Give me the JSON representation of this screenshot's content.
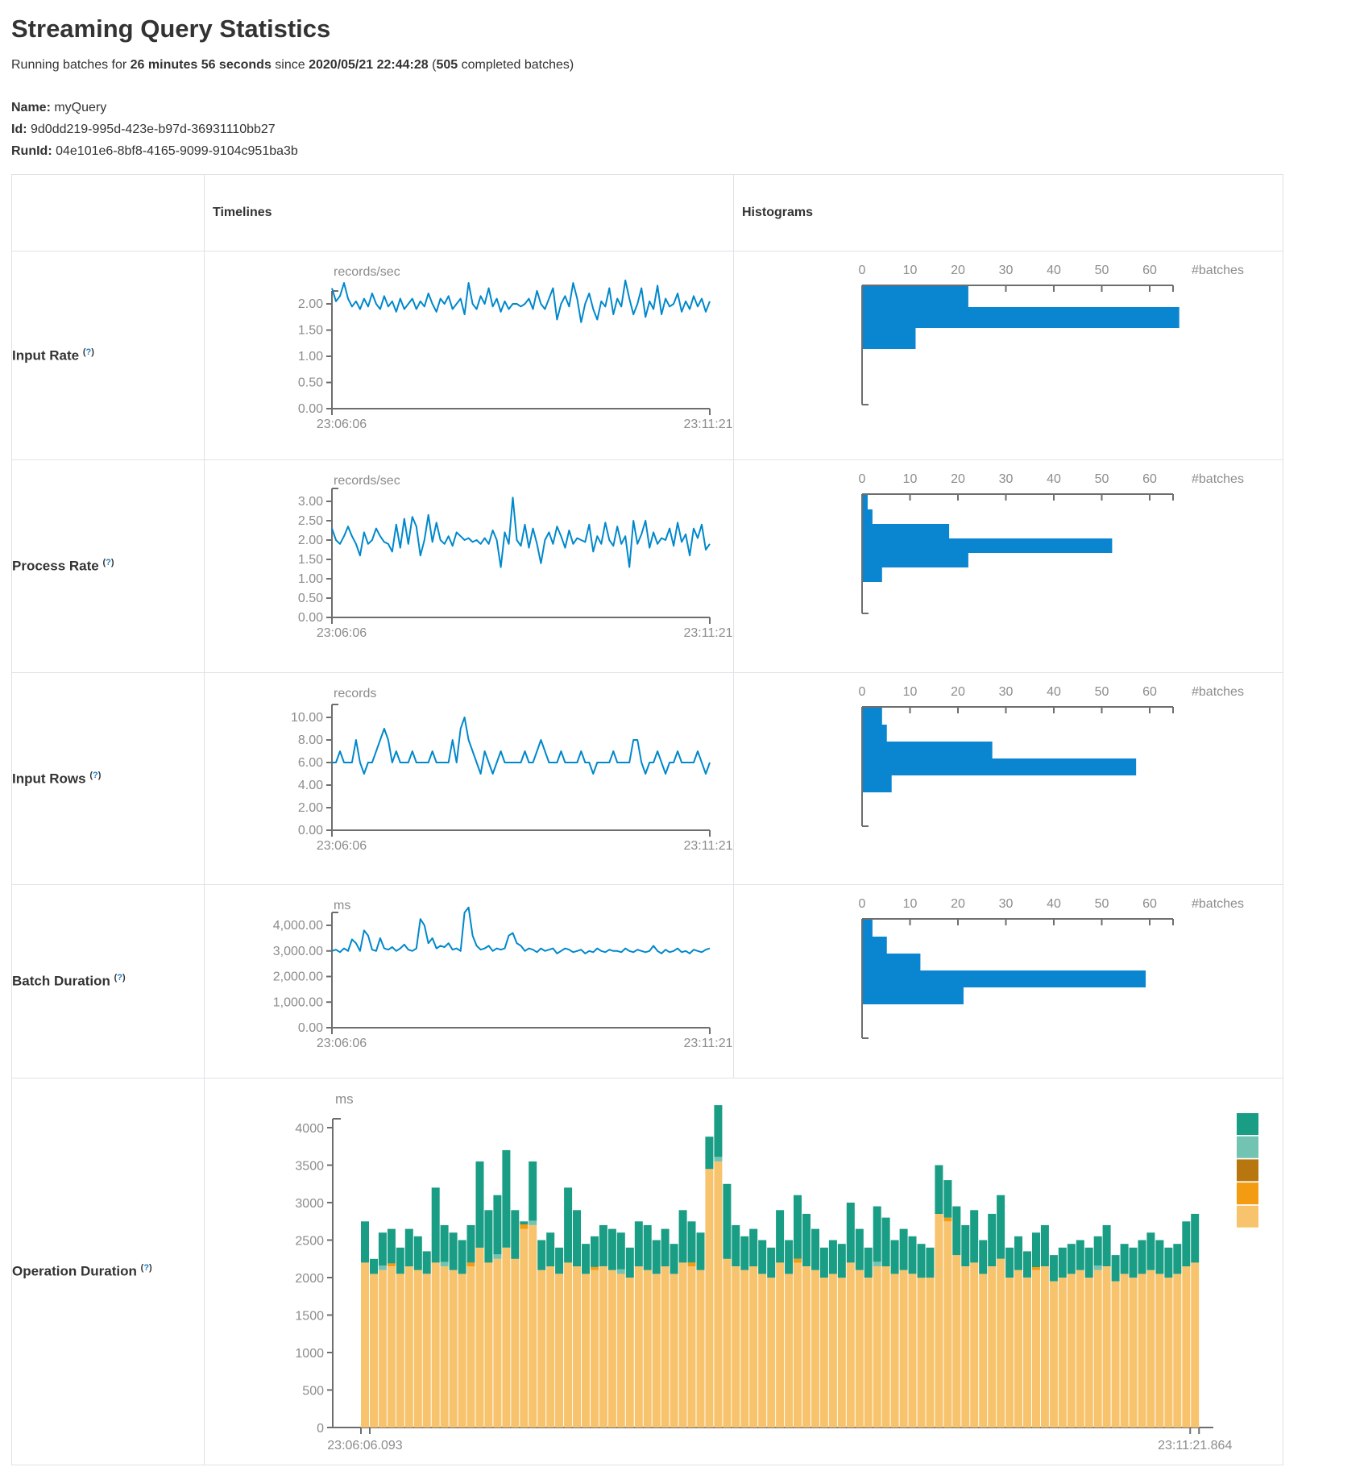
{
  "page": {
    "title": "Streaming Query Statistics",
    "subtitle": {
      "prefix": "Running batches for ",
      "duration": "26 minutes 56 seconds",
      "mid": " since ",
      "since": "2020/05/21 22:44:28",
      "paren": " (",
      "batches": "505",
      "suffix": " completed batches)"
    },
    "meta": {
      "name_label": "Name:",
      "name": " myQuery",
      "id_label": "Id:",
      "id": " 9d0dd219-995d-423e-b97d-36931110bb27",
      "runid_label": "RunId:",
      "runid": " 04e101e6-8bf8-4165-9099-9104c951ba3b"
    }
  },
  "table": {
    "col_timelines": "Timelines",
    "col_histograms": "Histograms",
    "rows": [
      {
        "label": "Input Rate",
        "help": "?"
      },
      {
        "label": "Process Rate",
        "help": "?"
      },
      {
        "label": "Input Rows",
        "help": "?"
      },
      {
        "label": "Batch Duration",
        "help": "?"
      },
      {
        "label": "Operation Duration",
        "help": "?"
      }
    ]
  },
  "colors": {
    "line_blue": "#0088cc",
    "bar_blue": "#0a85d0",
    "axis": "#6e6e6e",
    "tick_text": "#8c8c8c",
    "border": "#dfe2e6",
    "stack_order": [
      "#f8c36d",
      "#f39c12",
      "#73c3b3",
      "#199d84"
    ],
    "legend": [
      "#199d84",
      "#73c3b3",
      "#b8770e",
      "#f39c12",
      "#f8c36d"
    ]
  },
  "chart_data": [
    {
      "id": "tl-input-rate",
      "type": "line",
      "title": "Input Rate timeline",
      "unit": "records/sec",
      "x_start": "23:06:06",
      "x_end": "23:11:21",
      "y_ticks": [
        "2.00",
        "1.50",
        "1.00",
        "0.50",
        "0.00"
      ],
      "y_max": 2.0,
      "values": [
        2.3,
        2.05,
        2.15,
        2.4,
        2.1,
        1.95,
        2.05,
        1.9,
        2.1,
        1.95,
        2.2,
        2.0,
        1.9,
        2.15,
        1.95,
        2.05,
        1.85,
        2.1,
        1.9,
        2.0,
        2.1,
        1.9,
        2.05,
        1.95,
        2.2,
        2.0,
        1.85,
        2.1,
        2.0,
        2.15,
        1.9,
        2.0,
        2.1,
        1.8,
        2.4,
        2.0,
        1.9,
        2.15,
        2.0,
        2.3,
        1.95,
        2.1,
        1.85,
        2.05,
        1.9,
        2.0,
        2.0,
        1.95,
        2.0,
        2.1,
        1.9,
        2.25,
        2.0,
        1.9,
        2.1,
        2.3,
        1.7,
        2.0,
        2.15,
        1.95,
        2.4,
        2.1,
        1.65,
        2.0,
        2.2,
        1.9,
        1.7,
        2.05,
        1.95,
        2.3,
        1.8,
        2.1,
        1.95,
        2.45,
        2.1,
        1.8,
        2.0,
        2.3,
        1.75,
        2.05,
        1.9,
        2.35,
        1.8,
        2.1,
        1.95,
        2.0,
        2.2,
        1.85,
        2.05,
        1.9,
        2.15,
        1.95,
        2.1,
        1.85,
        2.05
      ]
    },
    {
      "id": "h-input-rate",
      "type": "bar",
      "title": "Input Rate histogram",
      "xlabel": "#batches",
      "x_ticks": [
        "0",
        "10",
        "20",
        "30",
        "40",
        "50",
        "60"
      ],
      "values": [
        22,
        66,
        11
      ]
    },
    {
      "id": "tl-process-rate",
      "type": "line",
      "title": "Process Rate timeline",
      "unit": "records/sec",
      "x_start": "23:06:06",
      "x_end": "23:11:21",
      "y_ticks": [
        "3.00",
        "2.50",
        "2.00",
        "1.50",
        "1.00",
        "0.50",
        "0.00"
      ],
      "y_max": 3.0,
      "values": [
        2.3,
        2.0,
        1.9,
        2.1,
        2.35,
        2.1,
        1.9,
        1.6,
        2.2,
        1.9,
        2.0,
        2.3,
        2.1,
        1.95,
        1.9,
        1.7,
        2.4,
        1.8,
        2.55,
        1.9,
        2.6,
        2.35,
        1.6,
        2.0,
        2.65,
        1.95,
        2.45,
        2.0,
        1.9,
        2.1,
        1.85,
        2.2,
        2.1,
        2.0,
        2.05,
        1.95,
        2.0,
        1.9,
        2.05,
        1.9,
        2.25,
        2.0,
        1.3,
        2.2,
        1.9,
        3.1,
        2.0,
        1.85,
        2.4,
        1.8,
        2.3,
        1.9,
        1.4,
        2.0,
        2.2,
        1.9,
        2.35,
        2.1,
        1.8,
        2.25,
        1.9,
        2.05,
        2.0,
        1.95,
        2.4,
        1.7,
        2.1,
        1.9,
        2.45,
        2.0,
        1.85,
        2.35,
        1.9,
        2.1,
        1.3,
        2.5,
        1.9,
        2.15,
        2.5,
        1.8,
        2.2,
        1.9,
        2.05,
        2.0,
        2.3,
        1.85,
        2.45,
        1.95,
        2.15,
        1.6,
        2.3,
        2.05,
        2.4,
        1.75,
        1.9
      ]
    },
    {
      "id": "h-process-rate",
      "type": "bar",
      "title": "Process Rate histogram",
      "xlabel": "#batches",
      "x_ticks": [
        "0",
        "10",
        "20",
        "30",
        "40",
        "50",
        "60"
      ],
      "values": [
        1,
        2,
        18,
        52,
        22,
        4
      ]
    },
    {
      "id": "tl-input-rows",
      "type": "line",
      "title": "Input Rows timeline",
      "unit": "records",
      "x_start": "23:06:06",
      "x_end": "23:11:21",
      "y_ticks": [
        "10.00",
        "8.00",
        "6.00",
        "4.00",
        "2.00",
        "0.00"
      ],
      "y_max": 10.0,
      "values": [
        6,
        6,
        7,
        6,
        6,
        6,
        8,
        6,
        5,
        6,
        6,
        7,
        8,
        9,
        8,
        6,
        7,
        6,
        6,
        6,
        7,
        6,
        6,
        6,
        6,
        7,
        6,
        6,
        6,
        6,
        8,
        6,
        9,
        10,
        8,
        7,
        6,
        5,
        7,
        6,
        5,
        6,
        7,
        6,
        6,
        6,
        6,
        6,
        7,
        6,
        6,
        7,
        8,
        7,
        6,
        6,
        6,
        7,
        6,
        6,
        6,
        6,
        7,
        6,
        6,
        5,
        6,
        6,
        6,
        6,
        7,
        6,
        6,
        6,
        6,
        8,
        8,
        6,
        5,
        6,
        6,
        7,
        6,
        5,
        6,
        6,
        7,
        6,
        6,
        6,
        6,
        7,
        6,
        5,
        6
      ]
    },
    {
      "id": "h-input-rows",
      "type": "bar",
      "title": "Input Rows histogram",
      "xlabel": "#batches",
      "x_ticks": [
        "0",
        "10",
        "20",
        "30",
        "40",
        "50",
        "60"
      ],
      "values": [
        4,
        5,
        27,
        57,
        6
      ]
    },
    {
      "id": "tl-batch-duration",
      "type": "line",
      "title": "Batch Duration timeline",
      "unit": "ms",
      "x_start": "23:06:06",
      "x_end": "23:11:21",
      "y_ticks": [
        "4,000.00",
        "3,000.00",
        "2,000.00",
        "1,000.00",
        "0.00"
      ],
      "y_max": 4000,
      "values": [
        3000,
        3050,
        2950,
        3100,
        3000,
        3450,
        3300,
        3000,
        3800,
        3600,
        3050,
        3000,
        3500,
        3100,
        3050,
        3150,
        3000,
        3100,
        3250,
        3050,
        3000,
        3100,
        4250,
        4000,
        3300,
        3500,
        3100,
        3200,
        3150,
        3300,
        3050,
        3100,
        3000,
        4500,
        4700,
        3600,
        3200,
        3050,
        3100,
        3200,
        3000,
        3100,
        3050,
        3100,
        3600,
        3700,
        3300,
        3200,
        3000,
        3100,
        3050,
        2950,
        3100,
        3000,
        3050,
        3100,
        2900,
        3000,
        3100,
        3050,
        2950,
        3000,
        3050,
        2900,
        3000,
        2950,
        3100,
        3000,
        2950,
        3050,
        3000,
        3000,
        2950,
        3100,
        3000,
        2950,
        3050,
        3000,
        2950,
        3000,
        3200,
        3000,
        2900,
        3050,
        2950,
        3000,
        3100,
        2950,
        3000,
        2900,
        3050,
        3000,
        2950,
        3050,
        3100
      ]
    },
    {
      "id": "h-batch-duration",
      "type": "bar",
      "title": "Batch Duration histogram",
      "xlabel": "#batches",
      "x_ticks": [
        "0",
        "10",
        "20",
        "30",
        "40",
        "50",
        "60"
      ],
      "values": [
        2,
        5,
        12,
        59,
        21
      ]
    },
    {
      "id": "op-duration",
      "type": "stacked-bar",
      "title": "Operation Duration",
      "unit": "ms",
      "x_start": "23:06:06.093",
      "x_end": "23:11:21.864",
      "y_ticks": [
        "0",
        "500",
        "1000",
        "1500",
        "2000",
        "2500",
        "3000",
        "3500",
        "4000"
      ],
      "y_step": 500,
      "legend_swatches": 5,
      "bars": [
        [
          2200,
          0,
          0,
          550
        ],
        [
          2050,
          0,
          0,
          200
        ],
        [
          2100,
          0,
          60,
          440
        ],
        [
          2150,
          40,
          0,
          460
        ],
        [
          2050,
          0,
          0,
          350
        ],
        [
          2150,
          0,
          0,
          500
        ],
        [
          2100,
          0,
          0,
          450
        ],
        [
          2050,
          0,
          0,
          300
        ],
        [
          2200,
          0,
          0,
          1000
        ],
        [
          2150,
          0,
          60,
          490
        ],
        [
          2100,
          0,
          0,
          500
        ],
        [
          2050,
          0,
          0,
          450
        ],
        [
          2150,
          50,
          0,
          500
        ],
        [
          2400,
          0,
          0,
          1150
        ],
        [
          2200,
          0,
          0,
          700
        ],
        [
          2250,
          0,
          60,
          790
        ],
        [
          2400,
          0,
          0,
          1300
        ],
        [
          2250,
          0,
          0,
          650
        ],
        [
          2650,
          60,
          0,
          40
        ],
        [
          2700,
          0,
          60,
          790
        ],
        [
          2100,
          0,
          0,
          400
        ],
        [
          2150,
          0,
          0,
          450
        ],
        [
          2050,
          0,
          0,
          350
        ],
        [
          2200,
          0,
          0,
          1000
        ],
        [
          2150,
          0,
          0,
          750
        ],
        [
          2050,
          0,
          0,
          400
        ],
        [
          2100,
          40,
          0,
          410
        ],
        [
          2150,
          0,
          0,
          550
        ],
        [
          2100,
          0,
          0,
          550
        ],
        [
          2050,
          0,
          60,
          490
        ],
        [
          2000,
          0,
          0,
          400
        ],
        [
          2150,
          0,
          0,
          600
        ],
        [
          2100,
          0,
          0,
          600
        ],
        [
          2050,
          0,
          0,
          450
        ],
        [
          2150,
          0,
          0,
          500
        ],
        [
          2050,
          0,
          0,
          400
        ],
        [
          2200,
          0,
          0,
          700
        ],
        [
          2150,
          50,
          0,
          550
        ],
        [
          2100,
          0,
          0,
          500
        ],
        [
          3450,
          0,
          0,
          430
        ],
        [
          3550,
          0,
          60,
          690
        ],
        [
          2250,
          0,
          0,
          1000
        ],
        [
          2150,
          0,
          0,
          550
        ],
        [
          2100,
          0,
          0,
          450
        ],
        [
          2150,
          0,
          0,
          500
        ],
        [
          2050,
          0,
          0,
          450
        ],
        [
          2000,
          0,
          0,
          400
        ],
        [
          2200,
          0,
          0,
          700
        ],
        [
          2050,
          0,
          0,
          450
        ],
        [
          2200,
          50,
          0,
          850
        ],
        [
          2150,
          0,
          0,
          700
        ],
        [
          2100,
          0,
          0,
          550
        ],
        [
          2000,
          0,
          0,
          400
        ],
        [
          2050,
          0,
          0,
          450
        ],
        [
          2000,
          0,
          0,
          450
        ],
        [
          2200,
          0,
          0,
          800
        ],
        [
          2100,
          0,
          0,
          550
        ],
        [
          2000,
          0,
          0,
          400
        ],
        [
          2150,
          0,
          60,
          740
        ],
        [
          2150,
          0,
          0,
          650
        ],
        [
          2050,
          0,
          0,
          450
        ],
        [
          2100,
          0,
          0,
          550
        ],
        [
          2050,
          0,
          0,
          500
        ],
        [
          2000,
          0,
          0,
          450
        ],
        [
          2000,
          0,
          0,
          400
        ],
        [
          2850,
          0,
          0,
          650
        ],
        [
          2750,
          50,
          0,
          500
        ],
        [
          2300,
          0,
          0,
          650
        ],
        [
          2150,
          0,
          0,
          550
        ],
        [
          2200,
          0,
          0,
          700
        ],
        [
          2050,
          0,
          0,
          450
        ],
        [
          2150,
          0,
          0,
          700
        ],
        [
          2250,
          0,
          0,
          850
        ],
        [
          2000,
          0,
          0,
          400
        ],
        [
          2100,
          0,
          0,
          450
        ],
        [
          2000,
          0,
          0,
          350
        ],
        [
          2100,
          40,
          0,
          460
        ],
        [
          2150,
          0,
          0,
          550
        ],
        [
          1950,
          0,
          0,
          350
        ],
        [
          2000,
          0,
          0,
          400
        ],
        [
          2050,
          0,
          0,
          400
        ],
        [
          2100,
          0,
          0,
          400
        ],
        [
          2000,
          0,
          0,
          400
        ],
        [
          2100,
          0,
          60,
          390
        ],
        [
          2150,
          0,
          0,
          550
        ],
        [
          1950,
          0,
          0,
          350
        ],
        [
          2050,
          0,
          0,
          400
        ],
        [
          2000,
          0,
          0,
          400
        ],
        [
          2050,
          0,
          0,
          450
        ],
        [
          2100,
          0,
          0,
          500
        ],
        [
          2050,
          0,
          0,
          450
        ],
        [
          2000,
          0,
          0,
          400
        ],
        [
          2050,
          0,
          0,
          400
        ],
        [
          2150,
          0,
          0,
          600
        ],
        [
          2200,
          0,
          0,
          650
        ]
      ]
    }
  ]
}
